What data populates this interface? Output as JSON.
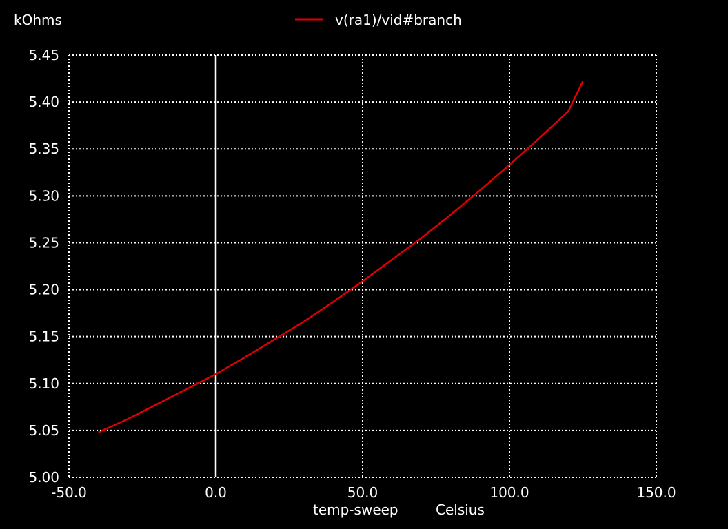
{
  "window": {
    "background": "#000000"
  },
  "chart_data": {
    "type": "line",
    "ylabel": "kOhms",
    "xlabel": "temp-sweep",
    "xunit": "Celsius",
    "xlim": [
      -50.0,
      150.0
    ],
    "ylim": [
      5.0,
      5.45
    ],
    "x_ticks": [
      "-50.0",
      "0.0",
      "50.0",
      "100.0",
      "150.0"
    ],
    "y_ticks": [
      "5.00",
      "5.05",
      "5.10",
      "5.15",
      "5.20",
      "5.25",
      "5.30",
      "5.35",
      "5.40",
      "5.45"
    ],
    "x_tick_values": [
      -50,
      0,
      50,
      100,
      150
    ],
    "y_tick_values": [
      5.0,
      5.05,
      5.1,
      5.15,
      5.2,
      5.25,
      5.3,
      5.35,
      5.4,
      5.45
    ],
    "grid": true,
    "grid_style": "dotted",
    "zero_line": true,
    "legend_position": "top-center",
    "series": [
      {
        "name": "v(ra1)/vid#branch",
        "color": "#e00000",
        "x": [
          -40,
          -30,
          -20,
          -10,
          0,
          10,
          20,
          30,
          40,
          50,
          60,
          70,
          80,
          90,
          100,
          110,
          120,
          125
        ],
        "y": [
          5.048,
          5.062,
          5.078,
          5.094,
          5.11,
          5.128,
          5.147,
          5.166,
          5.187,
          5.209,
          5.232,
          5.255,
          5.28,
          5.306,
          5.333,
          5.361,
          5.39,
          5.422
        ]
      }
    ]
  }
}
